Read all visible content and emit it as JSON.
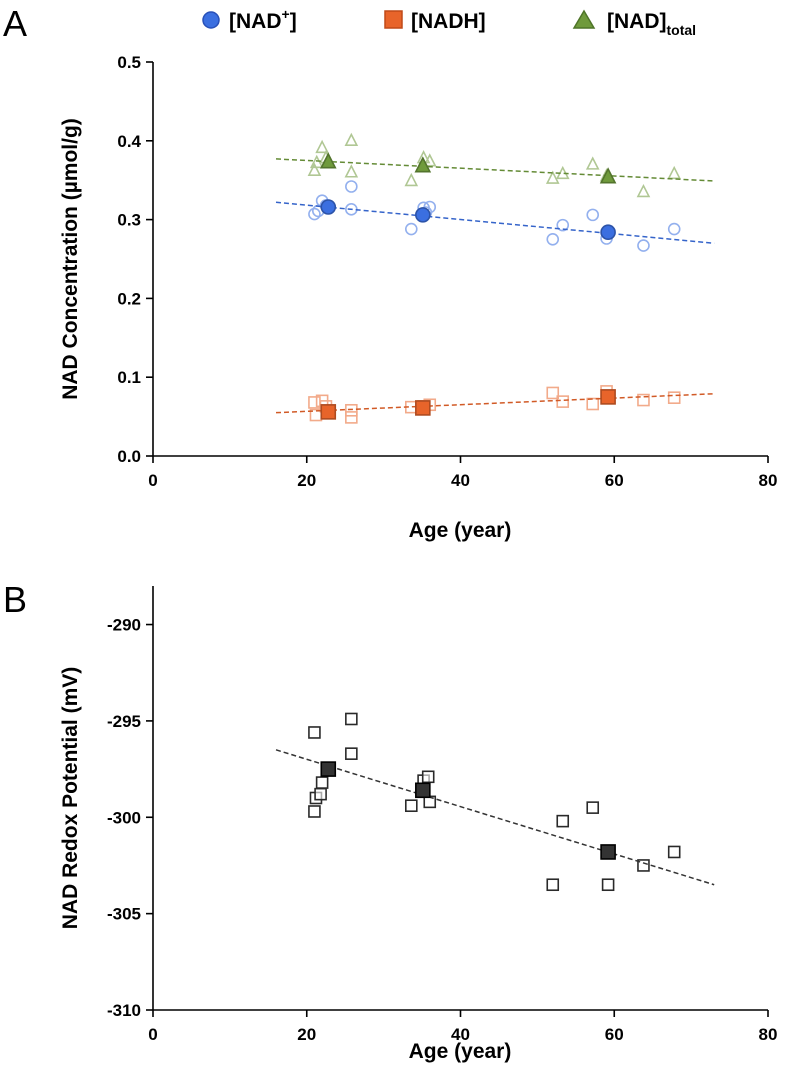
{
  "legend": {
    "nadplus": {
      "base": "[NAD",
      "sup": "+",
      "close": "]",
      "color": "#3b6fe0"
    },
    "nadh": {
      "text": "[NADH]",
      "color": "#e8642a"
    },
    "nadtotal": {
      "base": "[NAD]",
      "sub": "total",
      "color": "#6f9a3c"
    }
  },
  "chart_data": [
    {
      "panel": "A",
      "type": "scatter",
      "title": "",
      "xlabel": "Age (year)",
      "ylabel": "NAD Concentration (µmol/g)",
      "xlim": [
        0,
        80
      ],
      "ylim": [
        0.0,
        0.5
      ],
      "xticks": [
        "0",
        "20",
        "40",
        "60",
        "80"
      ],
      "yticks": [
        "0.0",
        "0.1",
        "0.2",
        "0.3",
        "0.4",
        "0.5"
      ],
      "series": [
        {
          "name": "[NAD+]",
          "color": "#3b6fe0",
          "marker": "circle",
          "points": [
            [
              21,
              0.307
            ],
            [
              21.5,
              0.311
            ],
            [
              22,
              0.324
            ],
            [
              22.5,
              0.318
            ],
            [
              25.8,
              0.342
            ],
            [
              25.8,
              0.313
            ],
            [
              33.6,
              0.288
            ],
            [
              35.2,
              0.315
            ],
            [
              36,
              0.316
            ],
            [
              35.5,
              0.309
            ],
            [
              52,
              0.275
            ],
            [
              53.3,
              0.293
            ],
            [
              57.2,
              0.306
            ],
            [
              59,
              0.276
            ],
            [
              59.2,
              0.285
            ],
            [
              63.8,
              0.267
            ],
            [
              67.8,
              0.288
            ]
          ],
          "means": [
            [
              22.8,
              0.316
            ],
            [
              35.1,
              0.306
            ],
            [
              59.2,
              0.284
            ]
          ],
          "trend": [
            [
              16,
              0.322
            ],
            [
              73,
              0.27
            ]
          ]
        },
        {
          "name": "[NADH]",
          "color": "#e8642a",
          "marker": "square",
          "points": [
            [
              21,
              0.068
            ],
            [
              21.2,
              0.052
            ],
            [
              22,
              0.07
            ],
            [
              22.5,
              0.063
            ],
            [
              25.8,
              0.058
            ],
            [
              25.8,
              0.049
            ],
            [
              33.6,
              0.062
            ],
            [
              35.2,
              0.063
            ],
            [
              36,
              0.065
            ],
            [
              52,
              0.08
            ],
            [
              53.3,
              0.069
            ],
            [
              57.2,
              0.066
            ],
            [
              59,
              0.082
            ],
            [
              63.8,
              0.071
            ],
            [
              67.8,
              0.074
            ]
          ],
          "means": [
            [
              22.8,
              0.056
            ],
            [
              35.1,
              0.061
            ],
            [
              59.2,
              0.075
            ]
          ],
          "trend": [
            [
              16,
              0.055
            ],
            [
              73,
              0.079
            ]
          ]
        },
        {
          "name": "[NAD]total",
          "color": "#6f9a3c",
          "marker": "triangle",
          "points": [
            [
              21,
              0.362
            ],
            [
              21.3,
              0.372
            ],
            [
              22,
              0.391
            ],
            [
              22.5,
              0.378
            ],
            [
              25.8,
              0.4
            ],
            [
              25.8,
              0.36
            ],
            [
              33.6,
              0.349
            ],
            [
              35.2,
              0.378
            ],
            [
              36,
              0.374
            ],
            [
              52,
              0.352
            ],
            [
              53.3,
              0.358
            ],
            [
              57.2,
              0.37
            ],
            [
              59,
              0.355
            ],
            [
              63.8,
              0.335
            ],
            [
              67.8,
              0.358
            ]
          ],
          "means": [
            [
              22.8,
              0.373
            ],
            [
              35.1,
              0.368
            ],
            [
              59.2,
              0.354
            ]
          ],
          "trend": [
            [
              16,
              0.377
            ],
            [
              73,
              0.349
            ]
          ]
        }
      ]
    },
    {
      "panel": "B",
      "type": "scatter",
      "title": "",
      "xlabel": "Age (year)",
      "ylabel": "NAD Redox Potential (mV)",
      "xlim": [
        0,
        80
      ],
      "ylim": [
        -310,
        -288
      ],
      "xticks": [
        "0",
        "20",
        "40",
        "60",
        "80"
      ],
      "yticks": [
        "-310",
        "-305",
        "-300",
        "-295",
        "-290"
      ],
      "series": [
        {
          "name": "NAD Redox Potential",
          "color": "#333333",
          "marker": "square",
          "points": [
            [
              21,
              -295.6
            ],
            [
              21,
              -299.7
            ],
            [
              21.2,
              -299
            ],
            [
              21.8,
              -298.8
            ],
            [
              22,
              -298.2
            ],
            [
              25.8,
              -294.9
            ],
            [
              25.8,
              -296.7
            ],
            [
              33.6,
              -299.4
            ],
            [
              35.2,
              -298.1
            ],
            [
              35.8,
              -297.9
            ],
            [
              36,
              -299.2
            ],
            [
              52,
              -303.5
            ],
            [
              53.3,
              -300.2
            ],
            [
              57.2,
              -299.5
            ],
            [
              59.2,
              -303.5
            ],
            [
              63.8,
              -302.5
            ],
            [
              67.8,
              -301.8
            ]
          ],
          "means": [
            [
              22.8,
              -297.5
            ],
            [
              35.1,
              -298.6
            ],
            [
              59.2,
              -301.8
            ]
          ],
          "trend": [
            [
              16,
              -296.5
            ],
            [
              73,
              -303.5
            ]
          ]
        }
      ]
    }
  ]
}
